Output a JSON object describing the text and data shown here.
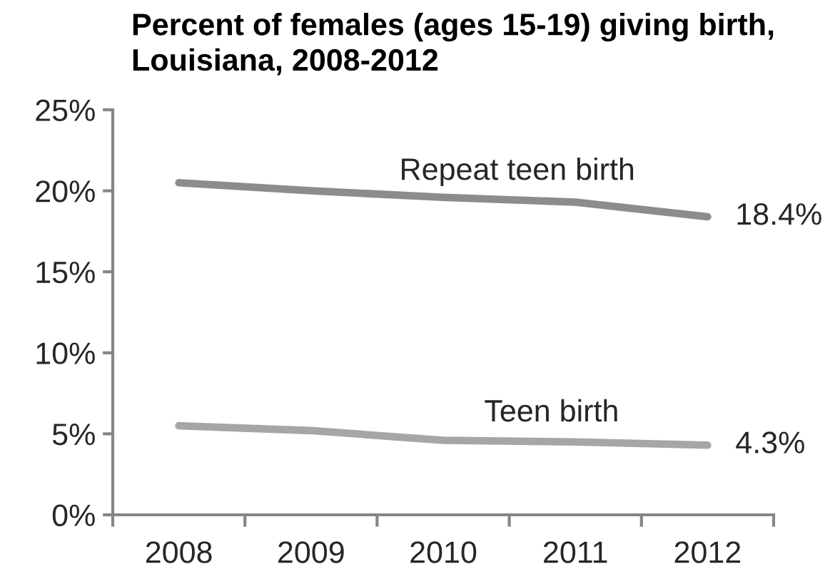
{
  "chart_data": {
    "type": "line",
    "title": "Percent of females (ages 15-19) giving birth,\nLouisiana, 2008-2012",
    "categories": [
      "2008",
      "2009",
      "2010",
      "2011",
      "2012"
    ],
    "series": [
      {
        "name": "Repeat teen birth",
        "color": "#8c8c8c",
        "values": [
          20.5,
          20.0,
          19.6,
          19.3,
          18.4
        ],
        "value_labels": [
          null,
          null,
          null,
          null,
          "18.4%"
        ]
      },
      {
        "name": "Teen birth",
        "color": "#a6a6a6",
        "values": [
          5.5,
          5.2,
          4.6,
          4.5,
          4.3
        ],
        "value_labels": [
          null,
          null,
          null,
          null,
          "4.3%"
        ]
      }
    ],
    "ylim": [
      0,
      25
    ],
    "yticks": [
      {
        "value": 0,
        "label": "0%"
      },
      {
        "value": 5,
        "label": "5%"
      },
      {
        "value": 10,
        "label": "10%"
      },
      {
        "value": 15,
        "label": "15%"
      },
      {
        "value": 20,
        "label": "20%"
      },
      {
        "value": 25,
        "label": "25%"
      }
    ],
    "grid": false,
    "legend": false,
    "marker": "none",
    "line_style": "solid"
  }
}
